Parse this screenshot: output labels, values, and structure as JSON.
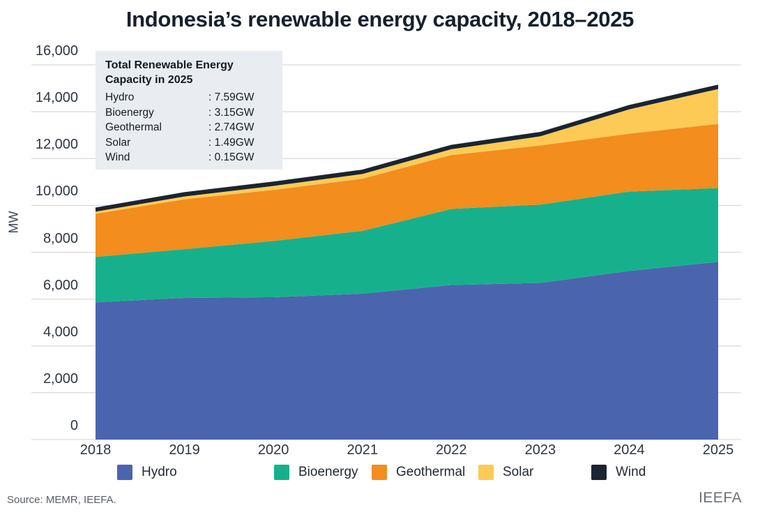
{
  "title": "Indonesia’s renewable energy capacity, 2018–2025",
  "annotation": {
    "title": "Total Renewable Energy Capacity in 2025",
    "rows": [
      {
        "label": "Hydro",
        "value": ": 7.59GW"
      },
      {
        "label": "Bioenergy",
        "value": ": 3.15GW"
      },
      {
        "label": "Geothermal",
        "value": ": 2.74GW"
      },
      {
        "label": "Solar",
        "value": ": 1.49GW"
      },
      {
        "label": "Wind",
        "value": ": 0.15GW"
      }
    ]
  },
  "footer": {
    "source": "Source: MEMR, IEEFA.",
    "watermark": "IEEFA"
  },
  "colors": {
    "hydro": "#4b64ae",
    "bioenergy": "#16b18c",
    "geothermal": "#f28d1e",
    "solar": "#fcca55",
    "wind": "#1b2531",
    "grid": "#d9d9d9",
    "title_text": "#16202d",
    "axis_text": "#2e3640",
    "annotation_bg": "#e9edf1",
    "source_text": "#585d64",
    "watermark_text": "#6b6f75"
  },
  "chart_data": {
    "type": "area",
    "stacked": true,
    "title": "Indonesia’s renewable energy capacity, 2018–2025",
    "categories": [
      "2018",
      "2019",
      "2020",
      "2021",
      "2022",
      "2023",
      "2024",
      "2025"
    ],
    "ylabel": "MW",
    "ylim": [
      0,
      16000
    ],
    "ytick_step": 2000,
    "grid": true,
    "legend_position": "bottom",
    "unit": "MW",
    "series": [
      {
        "name": "Hydro",
        "color": "#4b64ae",
        "values": [
          5860,
          6050,
          6080,
          6230,
          6600,
          6690,
          7200,
          7590
        ]
      },
      {
        "name": "Bioenergy",
        "color": "#16b18c",
        "values": [
          1940,
          2080,
          2400,
          2680,
          3250,
          3340,
          3390,
          3150
        ]
      },
      {
        "name": "Geothermal",
        "color": "#f28d1e",
        "values": [
          1840,
          2130,
          2180,
          2230,
          2300,
          2530,
          2470,
          2740
        ]
      },
      {
        "name": "Solar",
        "color": "#fcca55",
        "values": [
          90,
          120,
          170,
          200,
          250,
          390,
          1040,
          1490
        ]
      },
      {
        "name": "Wind",
        "color": "#1b2531",
        "values": [
          140,
          150,
          150,
          150,
          150,
          150,
          150,
          150
        ]
      }
    ]
  }
}
